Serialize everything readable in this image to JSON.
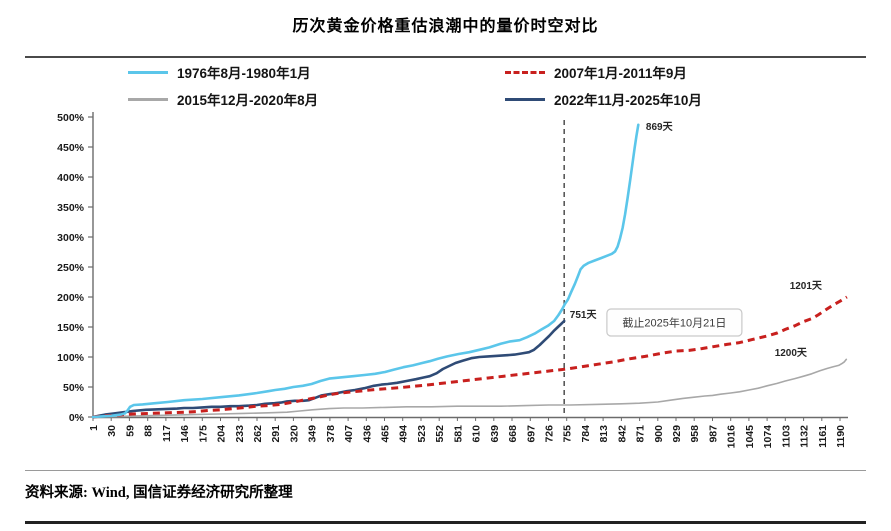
{
  "title": "历次黄金价格重估浪潮中的量价时空对比",
  "source": "资料来源: Wind, 国信证券经济研究所整理",
  "legend": {
    "items": [
      {
        "label": "1976年8月-1980年1月",
        "color": "#5BC6EA",
        "dash": false
      },
      {
        "label": "2007年1月-2011年9月",
        "color": "#C8201E",
        "dash": true
      },
      {
        "label": "2015年12月-2020年8月",
        "color": "#A8A8A8",
        "dash": false
      },
      {
        "label": "2022年11月-2025年10月",
        "color": "#2F4B76",
        "dash": false
      }
    ]
  },
  "chart_data": {
    "type": "line",
    "title": "历次黄金价格重估浪潮中的量价时空对比",
    "xlabel": "",
    "ylabel": "",
    "ylim": [
      0,
      500
    ],
    "y_tick_suffix": "%",
    "y_ticks": [
      0,
      50,
      100,
      150,
      200,
      250,
      300,
      350,
      400,
      450,
      500
    ],
    "x_ticks": [
      1,
      30,
      59,
      88,
      117,
      146,
      175,
      204,
      233,
      262,
      291,
      320,
      349,
      378,
      407,
      436,
      465,
      494,
      523,
      552,
      581,
      610,
      639,
      668,
      697,
      726,
      755,
      784,
      813,
      842,
      871,
      900,
      929,
      958,
      987,
      1016,
      1045,
      1074,
      1103,
      1132,
      1161,
      1190
    ],
    "legend_position": "top",
    "grid": false,
    "vline": {
      "day": 751,
      "color": "#595959"
    },
    "annotations": [
      {
        "label": "869天",
        "day": 881,
        "pct": 478
      },
      {
        "label": "751天",
        "day": 760,
        "pct": 165
      },
      {
        "label": "1201天",
        "day": 1110,
        "pct": 213
      },
      {
        "label": "1200天",
        "day": 1086,
        "pct": 102
      }
    ],
    "note_box": {
      "label": "截止2025年10月21日",
      "day": 819,
      "pct": 180
    },
    "series": [
      {
        "name": "2015年12月-2020年8月",
        "color": "#A8A8A8",
        "width": 1.6,
        "dash": null,
        "points": [
          [
            1,
            0
          ],
          [
            40,
            1
          ],
          [
            80,
            2
          ],
          [
            120,
            3
          ],
          [
            160,
            4
          ],
          [
            200,
            5
          ],
          [
            240,
            6
          ],
          [
            280,
            7
          ],
          [
            310,
            8
          ],
          [
            330,
            10
          ],
          [
            350,
            12
          ],
          [
            377,
            14
          ],
          [
            400,
            15
          ],
          [
            430,
            15
          ],
          [
            466,
            16
          ],
          [
            500,
            17
          ],
          [
            540,
            17
          ],
          [
            580,
            18
          ],
          [
            616,
            18
          ],
          [
            650,
            18
          ],
          [
            690,
            19
          ],
          [
            726,
            20
          ],
          [
            760,
            20
          ],
          [
            800,
            21
          ],
          [
            842,
            22
          ],
          [
            871,
            23
          ],
          [
            900,
            25
          ],
          [
            920,
            28
          ],
          [
            940,
            31
          ],
          [
            958,
            33
          ],
          [
            975,
            35
          ],
          [
            987,
            36
          ],
          [
            1000,
            38
          ],
          [
            1016,
            40
          ],
          [
            1030,
            42
          ],
          [
            1045,
            45
          ],
          [
            1060,
            48
          ],
          [
            1074,
            52
          ],
          [
            1090,
            56
          ],
          [
            1103,
            60
          ],
          [
            1118,
            64
          ],
          [
            1132,
            68
          ],
          [
            1145,
            72
          ],
          [
            1158,
            77
          ],
          [
            1170,
            81
          ],
          [
            1180,
            84
          ],
          [
            1188,
            86
          ],
          [
            1193,
            89
          ],
          [
            1197,
            92
          ],
          [
            1200,
            96
          ]
        ]
      },
      {
        "name": "2022年11月-2025年10月",
        "color": "#2F4B76",
        "width": 2.6,
        "dash": null,
        "points": [
          [
            1,
            0
          ],
          [
            10,
            2
          ],
          [
            20,
            4
          ],
          [
            35,
            6
          ],
          [
            50,
            8
          ],
          [
            64,
            10
          ],
          [
            85,
            12
          ],
          [
            110,
            13
          ],
          [
            135,
            14
          ],
          [
            146,
            15
          ],
          [
            160,
            15
          ],
          [
            175,
            16
          ],
          [
            190,
            17
          ],
          [
            204,
            17
          ],
          [
            220,
            18
          ],
          [
            233,
            18
          ],
          [
            250,
            19
          ],
          [
            262,
            20
          ],
          [
            275,
            22
          ],
          [
            290,
            23
          ],
          [
            300,
            24
          ],
          [
            310,
            26
          ],
          [
            322,
            27
          ],
          [
            335,
            27
          ],
          [
            345,
            28
          ],
          [
            355,
            32
          ],
          [
            365,
            36
          ],
          [
            377,
            38
          ],
          [
            390,
            40
          ],
          [
            405,
            43
          ],
          [
            418,
            45
          ],
          [
            433,
            48
          ],
          [
            448,
            52
          ],
          [
            460,
            54
          ],
          [
            470,
            55
          ],
          [
            485,
            57
          ],
          [
            500,
            60
          ],
          [
            515,
            63
          ],
          [
            528,
            66
          ],
          [
            537,
            68
          ],
          [
            548,
            73
          ],
          [
            558,
            80
          ],
          [
            568,
            85
          ],
          [
            578,
            90
          ],
          [
            590,
            94
          ],
          [
            603,
            98
          ],
          [
            616,
            100
          ],
          [
            630,
            101
          ],
          [
            645,
            102
          ],
          [
            660,
            103
          ],
          [
            672,
            104
          ],
          [
            684,
            106
          ],
          [
            695,
            108
          ],
          [
            703,
            112
          ],
          [
            712,
            120
          ],
          [
            720,
            128
          ],
          [
            727,
            135
          ],
          [
            734,
            143
          ],
          [
            741,
            150
          ],
          [
            746,
            155
          ],
          [
            751,
            160
          ]
        ]
      },
      {
        "name": "2007年1月-2011年9月",
        "color": "#C8201E",
        "width": 3,
        "dash": "7 5",
        "points": [
          [
            1,
            0
          ],
          [
            20,
            2
          ],
          [
            40,
            3
          ],
          [
            64,
            5
          ],
          [
            90,
            6
          ],
          [
            120,
            7
          ],
          [
            146,
            8
          ],
          [
            165,
            9
          ],
          [
            185,
            11
          ],
          [
            204,
            12
          ],
          [
            225,
            14
          ],
          [
            245,
            16
          ],
          [
            262,
            18
          ],
          [
            280,
            19
          ],
          [
            300,
            21
          ],
          [
            315,
            24
          ],
          [
            330,
            27
          ],
          [
            345,
            30
          ],
          [
            360,
            33
          ],
          [
            377,
            37
          ],
          [
            395,
            40
          ],
          [
            415,
            42
          ],
          [
            433,
            44
          ],
          [
            452,
            46
          ],
          [
            466,
            47
          ],
          [
            490,
            49
          ],
          [
            510,
            51
          ],
          [
            530,
            53
          ],
          [
            555,
            56
          ],
          [
            580,
            59
          ],
          [
            605,
            62
          ],
          [
            630,
            65
          ],
          [
            655,
            68
          ],
          [
            680,
            71
          ],
          [
            705,
            74
          ],
          [
            730,
            77
          ],
          [
            755,
            80
          ],
          [
            780,
            84
          ],
          [
            805,
            88
          ],
          [
            830,
            92
          ],
          [
            855,
            97
          ],
          [
            880,
            101
          ],
          [
            905,
            106
          ],
          [
            929,
            110
          ],
          [
            950,
            111
          ],
          [
            970,
            114
          ],
          [
            987,
            117
          ],
          [
            1010,
            121
          ],
          [
            1030,
            124
          ],
          [
            1050,
            129
          ],
          [
            1074,
            135
          ],
          [
            1090,
            140
          ],
          [
            1103,
            146
          ],
          [
            1118,
            152
          ],
          [
            1132,
            159
          ],
          [
            1145,
            164
          ],
          [
            1155,
            170
          ],
          [
            1165,
            177
          ],
          [
            1178,
            186
          ],
          [
            1190,
            193
          ],
          [
            1201,
            200
          ]
        ]
      },
      {
        "name": "1976年8月-1980年1月",
        "color": "#5BC6EA",
        "width": 2.6,
        "dash": null,
        "points": [
          [
            1,
            0
          ],
          [
            15,
            1
          ],
          [
            30,
            2
          ],
          [
            45,
            4
          ],
          [
            52,
            6
          ],
          [
            56,
            11
          ],
          [
            60,
            17
          ],
          [
            66,
            20
          ],
          [
            80,
            21
          ],
          [
            100,
            23
          ],
          [
            120,
            25
          ],
          [
            146,
            28
          ],
          [
            175,
            30
          ],
          [
            204,
            33
          ],
          [
            233,
            36
          ],
          [
            262,
            40
          ],
          [
            280,
            43
          ],
          [
            291,
            45
          ],
          [
            306,
            47
          ],
          [
            320,
            50
          ],
          [
            335,
            52
          ],
          [
            349,
            55
          ],
          [
            363,
            60
          ],
          [
            377,
            64
          ],
          [
            395,
            66
          ],
          [
            415,
            68
          ],
          [
            433,
            70
          ],
          [
            450,
            72
          ],
          [
            466,
            75
          ],
          [
            480,
            79
          ],
          [
            495,
            83
          ],
          [
            510,
            86
          ],
          [
            525,
            90
          ],
          [
            537,
            93
          ],
          [
            550,
            97
          ],
          [
            565,
            101
          ],
          [
            583,
            105
          ],
          [
            600,
            108
          ],
          [
            616,
            112
          ],
          [
            632,
            116
          ],
          [
            650,
            122
          ],
          [
            665,
            126
          ],
          [
            680,
            128
          ],
          [
            692,
            133
          ],
          [
            704,
            139
          ],
          [
            715,
            146
          ],
          [
            725,
            152
          ],
          [
            735,
            160
          ],
          [
            742,
            170
          ],
          [
            748,
            180
          ],
          [
            752,
            188
          ],
          [
            757,
            196
          ],
          [
            762,
            208
          ],
          [
            768,
            222
          ],
          [
            773,
            235
          ],
          [
            777,
            246
          ],
          [
            782,
            252
          ],
          [
            790,
            257
          ],
          [
            800,
            261
          ],
          [
            810,
            265
          ],
          [
            820,
            269
          ],
          [
            827,
            272
          ],
          [
            832,
            276
          ],
          [
            836,
            284
          ],
          [
            840,
            298
          ],
          [
            844,
            315
          ],
          [
            848,
            338
          ],
          [
            852,
            365
          ],
          [
            856,
            395
          ],
          [
            860,
            425
          ],
          [
            863,
            448
          ],
          [
            866,
            468
          ],
          [
            869,
            487
          ]
        ]
      }
    ]
  }
}
